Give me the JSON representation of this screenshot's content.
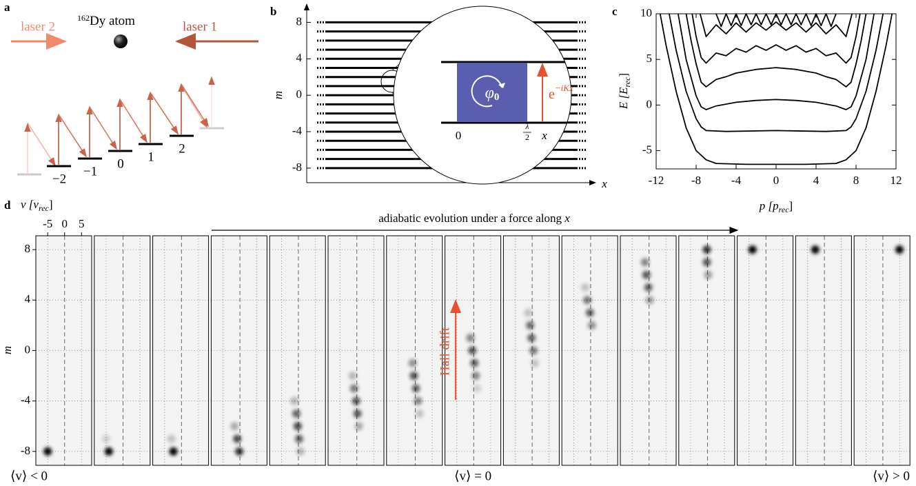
{
  "panel_labels": [
    "a",
    "b",
    "c",
    "d"
  ],
  "panel_a": {
    "laser_left": "laser 2",
    "laser_right": "laser 1",
    "atom_mass": "162",
    "atom": "Dy atom",
    "levels": [
      "−2",
      "−1",
      "0",
      "1",
      "2"
    ]
  },
  "chart_data": [
    {
      "type": "lattice",
      "x_label": "x",
      "y_label": "m",
      "ylim": [
        -9.6,
        10
      ],
      "yticks": [
        -8,
        -4,
        0,
        4,
        8
      ],
      "sites": [
        -8,
        -7,
        -6,
        -5,
        -4,
        -3,
        -2,
        -1,
        0,
        1,
        2,
        3,
        4,
        5,
        6,
        7,
        8
      ],
      "inset": {
        "phase": "φ",
        "phase_sub": "0",
        "origin": "0",
        "half_numer": "λ",
        "half_denom": "2",
        "x": "x",
        "hop_base": "e",
        "hop_exp": "−iKx"
      }
    },
    {
      "type": "line",
      "x_label": "p [p",
      "x_label_sub": "rec",
      "x_label_end": "]",
      "y_label": "E [E",
      "y_label_sub": "rec",
      "y_label_end": "]",
      "xlim": [
        -12,
        12
      ],
      "xticks": [
        -12,
        -8,
        -4,
        0,
        4,
        8,
        12
      ],
      "ylim": [
        -7,
        10
      ],
      "yticks": [
        -5,
        0,
        5,
        10
      ],
      "color": "#000000",
      "series": [
        {
          "x": [
            -11.6,
            -11,
            -10,
            -9,
            -8,
            -7,
            -6,
            -3,
            0,
            3,
            6,
            7,
            8,
            9,
            10,
            11,
            11.6
          ],
          "values": [
            10,
            6.5,
            1.5,
            -2.5,
            -5,
            -6,
            -6.4,
            -6.5,
            -6.5,
            -6.5,
            -6.4,
            -6,
            -5,
            -2.5,
            1.5,
            6.5,
            10
          ]
        },
        {
          "x": [
            -10.7,
            -10,
            -9,
            -8,
            -7.5,
            -7,
            -5,
            0,
            5,
            7,
            7.5,
            8,
            9,
            10,
            10.7
          ],
          "values": [
            10,
            6,
            1.5,
            -1.5,
            -2.4,
            -2.8,
            -2.9,
            -2.8,
            -2.9,
            -2.8,
            -2.4,
            -1.5,
            1.5,
            6,
            10
          ]
        },
        {
          "x": [
            -9.8,
            -9,
            -8,
            -7.5,
            -7,
            -6,
            -4,
            -2,
            0,
            2,
            4,
            6,
            7,
            7.5,
            8,
            9,
            9.8
          ],
          "values": [
            10,
            5,
            1,
            -0.2,
            -0.5,
            -0.1,
            0.3,
            0.5,
            0.6,
            0.5,
            0.3,
            -0.1,
            -0.5,
            -0.2,
            1,
            5,
            10
          ]
        },
        {
          "x": [
            -9,
            -8.5,
            -8,
            -7.5,
            -7,
            -6,
            -5,
            -4,
            -2,
            0,
            2,
            4,
            5,
            6,
            7,
            7.5,
            8,
            8.5,
            9
          ],
          "values": [
            10,
            7,
            4.5,
            2.5,
            2,
            2.8,
            3.1,
            3.5,
            3.9,
            4.1,
            3.9,
            3.5,
            3.1,
            2.8,
            2,
            2.5,
            4.5,
            7,
            10
          ]
        },
        {
          "x": [
            -8.4,
            -8,
            -7.5,
            -7,
            -6,
            -5,
            -4,
            -3,
            -2,
            -1,
            0,
            1,
            2,
            3,
            4,
            5,
            6,
            7,
            7.5,
            8,
            8.4
          ],
          "values": [
            10,
            7.5,
            5.2,
            4.6,
            5.7,
            5.4,
            6.2,
            5.8,
            6.5,
            6,
            6.6,
            6,
            6.5,
            5.8,
            6.2,
            5.4,
            5.7,
            4.6,
            5.2,
            7.5,
            10
          ]
        },
        {
          "x": [
            -7.6,
            -7,
            -6,
            -5,
            -4,
            -3,
            -2,
            -1,
            0,
            1,
            2,
            3,
            4,
            5,
            6,
            7,
            7.6
          ],
          "values": [
            10,
            7.5,
            8.8,
            7.8,
            9,
            8,
            9,
            8.2,
            9.1,
            8.2,
            9,
            8,
            9,
            7.8,
            8.8,
            7.5,
            10
          ]
        },
        {
          "x": [
            -6,
            -5.5,
            -5,
            -4.5,
            -4,
            -3.5,
            -3,
            -2.5,
            -2,
            -1.5,
            -1,
            -0.5,
            0,
            0.5,
            1,
            1.5,
            2,
            2.5,
            3,
            3.5,
            4,
            4.5,
            5,
            5.5,
            6
          ],
          "values": [
            10,
            8.6,
            10,
            8.7,
            10,
            8.7,
            10,
            8.8,
            10,
            8.8,
            10,
            8.8,
            10,
            8.8,
            10,
            8.8,
            10,
            8.8,
            10,
            8.7,
            10,
            8.7,
            10,
            8.6,
            10
          ]
        }
      ]
    },
    {
      "type": "frames",
      "title": "adiabatic evolution under a force along ",
      "title_var": "x",
      "annotation": "Hall drift",
      "x_label": "v [v",
      "x_label_sub": "rec",
      "x_label_end": "]",
      "y_label": "m",
      "xlim": [
        -8.5,
        8
      ],
      "xticks": [
        -5,
        0,
        5
      ],
      "ylim": [
        -9.1,
        9.1
      ],
      "yticks": [
        -8,
        -4,
        0,
        4,
        8
      ],
      "frame_labels": [
        "⟨v⟩ < 0",
        "⟨v⟩ = 0",
        "⟨v⟩ > 0"
      ],
      "frames": [
        {
          "spots": [
            [
              -5,
              -8,
              1
            ]
          ]
        },
        {
          "spots": [
            [
              -4.2,
              -8,
              1
            ],
            [
              -5,
              -7,
              0.15
            ]
          ]
        },
        {
          "spots": [
            [
              -2.4,
              -8,
              1
            ],
            [
              -3,
              -7,
              0.2
            ]
          ]
        },
        {
          "spots": [
            [
              -0.2,
              -8,
              0.8
            ],
            [
              -0.8,
              -7,
              0.7
            ],
            [
              -1.6,
              -6,
              0.3
            ]
          ]
        },
        {
          "spots": [
            [
              -1.2,
              -4,
              0.25
            ],
            [
              -0.6,
              -5,
              0.6
            ],
            [
              -0.2,
              -6,
              0.7
            ],
            [
              0.2,
              -7,
              0.6
            ],
            [
              0.6,
              -8,
              0.25
            ]
          ]
        },
        {
          "spots": [
            [
              -1.2,
              -2,
              0.25
            ],
            [
              -0.8,
              -3,
              0.5
            ],
            [
              -0.2,
              -4,
              0.65
            ],
            [
              0.2,
              -5,
              0.65
            ],
            [
              0.6,
              -6,
              0.3
            ]
          ]
        },
        {
          "spots": [
            [
              -0.8,
              -1,
              0.4
            ],
            [
              -0.4,
              -2,
              0.65
            ],
            [
              0.2,
              -3,
              0.6
            ],
            [
              0.8,
              -4,
              0.45
            ],
            [
              1.2,
              -5,
              0.2
            ]
          ]
        },
        {
          "spots": [
            [
              -1,
              1,
              0.45
            ],
            [
              -0.4,
              0,
              0.65
            ],
            [
              0.2,
              -1,
              0.6
            ],
            [
              0.6,
              -2,
              0.45
            ],
            [
              1,
              -3,
              0.15
            ]
          ]
        },
        {
          "spots": [
            [
              -1.2,
              3,
              0.2
            ],
            [
              -0.6,
              2,
              0.55
            ],
            [
              -0.2,
              1,
              0.6
            ],
            [
              0.4,
              0,
              0.5
            ],
            [
              0.8,
              -1,
              0.2
            ]
          ]
        },
        {
          "spots": [
            [
              -1.6,
              5,
              0.2
            ],
            [
              -1,
              4,
              0.5
            ],
            [
              -0.2,
              3,
              0.6
            ],
            [
              0.4,
              2,
              0.4
            ]
          ]
        },
        {
          "spots": [
            [
              -1.2,
              7,
              0.45
            ],
            [
              -0.8,
              6,
              0.65
            ],
            [
              -0.2,
              5,
              0.6
            ],
            [
              0.2,
              4,
              0.35
            ]
          ]
        },
        {
          "spots": [
            [
              -0.2,
              8,
              0.8
            ],
            [
              -0.2,
              7,
              0.65
            ],
            [
              0.2,
              6,
              0.35
            ]
          ]
        },
        {
          "spots": [
            [
              -4,
              8,
              1
            ]
          ]
        },
        {
          "spots": [
            [
              -2.7,
              8,
              1
            ]
          ]
        },
        {
          "spots": [
            [
              4.9,
              8,
              1
            ]
          ]
        }
      ]
    }
  ]
}
